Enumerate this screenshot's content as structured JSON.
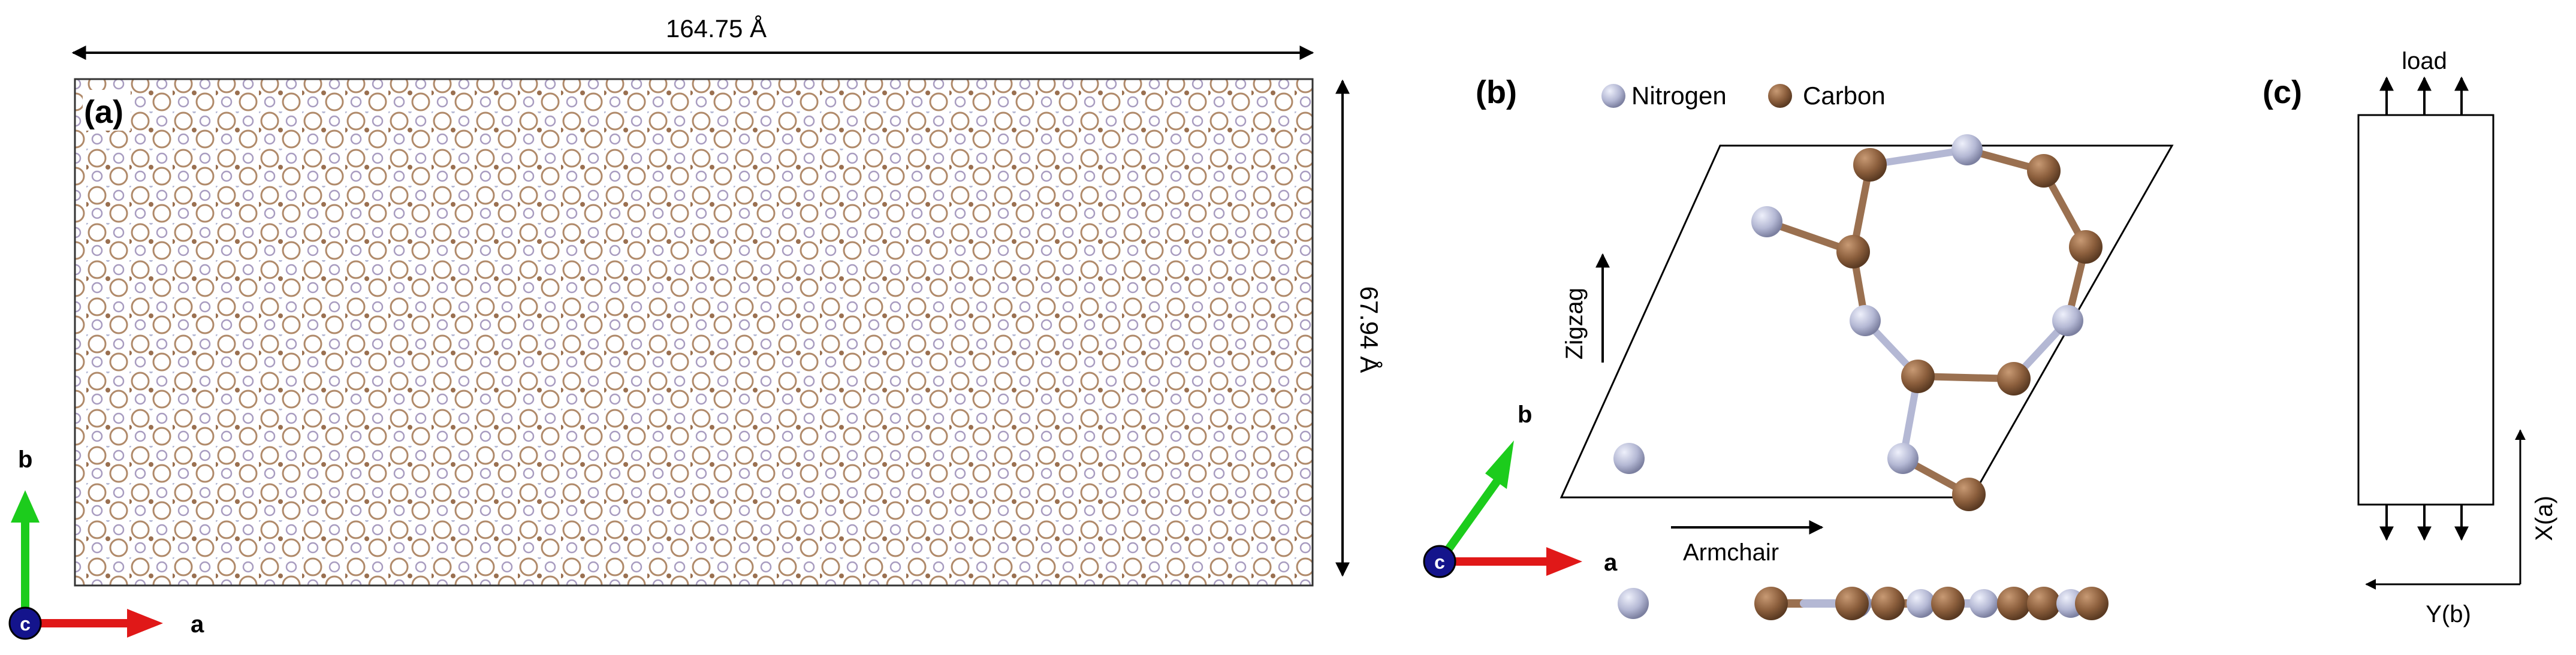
{
  "panel_a": {
    "label": "(a)",
    "width_label": "164.75 Å",
    "height_label": "67.94 Å",
    "axes": {
      "b": "b",
      "a": "a",
      "c": "c"
    }
  },
  "panel_b": {
    "label": "(b)",
    "legend": [
      {
        "name": "Nitrogen",
        "color": "#b4b8d4"
      },
      {
        "name": "Carbon",
        "color": "#8b5e3c"
      }
    ],
    "zigzag_label": "Zigzag",
    "armchair_label": "Armchair",
    "axes": {
      "b": "b",
      "a": "a",
      "c": "c"
    }
  },
  "panel_c": {
    "label": "(c)",
    "load_label": "load",
    "x_axis_label": "X(a)",
    "y_axis_label": "Y(b)"
  },
  "colors": {
    "nitrogen": "#b4b8d4",
    "carbon": "#8b5e3c",
    "axis_b": "#1ccc1c",
    "axis_a": "#e01818",
    "axis_c": "#14148c",
    "bond": "#9a7050"
  }
}
